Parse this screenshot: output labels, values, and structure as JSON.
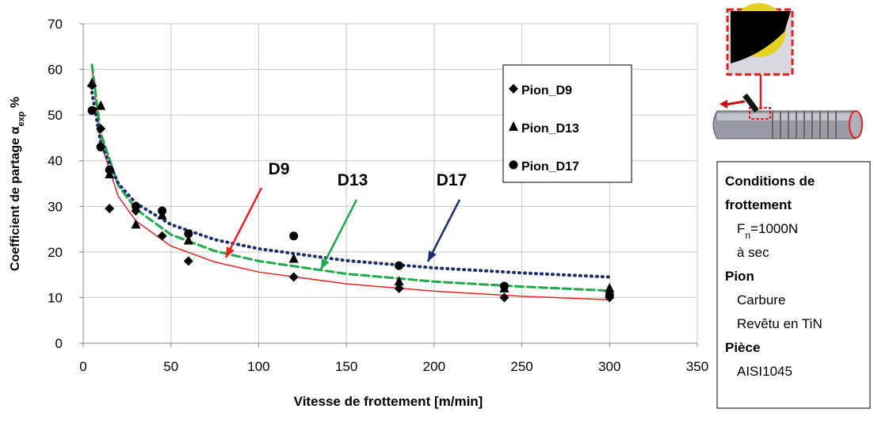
{
  "chart_data": {
    "type": "scatter",
    "xlabel": "Vitesse de frottement [m/min]",
    "ylabel": {
      "text": "Coefficient de partage α",
      "sub": "exp",
      "tail": " %"
    },
    "xlim": [
      0,
      350
    ],
    "xticks": [
      0,
      50,
      100,
      150,
      200,
      250,
      300,
      350
    ],
    "ylim": [
      0,
      70
    ],
    "yticks": [
      0,
      10,
      20,
      30,
      40,
      50,
      60,
      70
    ],
    "grid": true,
    "legend": "upper right",
    "series": [
      {
        "name": "Pion_D9",
        "marker": "diamond",
        "color": "#000000",
        "x": [
          5,
          10,
          15,
          30,
          45,
          60,
          120,
          180,
          240,
          300
        ],
        "values": [
          56.5,
          47,
          29.5,
          29,
          23.5,
          18,
          14.5,
          12,
          10,
          10
        ]
      },
      {
        "name": "Pion_D13",
        "marker": "triangle",
        "color": "#000000",
        "x": [
          5,
          10,
          15,
          30,
          45,
          60,
          120,
          180,
          240,
          300
        ],
        "values": [
          57,
          52,
          37,
          26,
          28,
          22.5,
          18.5,
          13.5,
          12,
          12
        ]
      },
      {
        "name": "Pion_D17",
        "marker": "circle",
        "color": "#000000",
        "x": [
          5,
          10,
          15,
          30,
          45,
          60,
          120,
          180,
          240,
          300
        ],
        "values": [
          51,
          43,
          38,
          30,
          29,
          24,
          23.5,
          17,
          12.5,
          10.5
        ]
      }
    ],
    "curves": [
      {
        "label": "D9",
        "color": "#e8231f",
        "style": "solid",
        "x": [
          5,
          10,
          20,
          30,
          50,
          75,
          100,
          150,
          200,
          250,
          300
        ],
        "values": [
          60.1,
          44.0,
          32.2,
          26.8,
          21.3,
          17.8,
          15.6,
          13.0,
          11.4,
          10.3,
          9.5
        ]
      },
      {
        "label": "D13",
        "color": "#1eaa4b",
        "style": "dashed",
        "x": [
          5,
          10,
          20,
          30,
          50,
          75,
          100,
          150,
          200,
          250,
          300
        ],
        "values": [
          61,
          46.0,
          34.6,
          29.4,
          23.8,
          20.2,
          18.0,
          15.2,
          13.5,
          12.4,
          11.5
        ]
      },
      {
        "label": "D17",
        "color": "#1b2d6e",
        "style": "dotted",
        "x": [
          5,
          10,
          20,
          30,
          50,
          75,
          100,
          150,
          200,
          250,
          300
        ],
        "values": [
          55,
          43.9,
          35.0,
          30.7,
          26.0,
          22.7,
          20.7,
          18.1,
          16.5,
          15.4,
          14.5
        ]
      }
    ]
  },
  "conditions": [
    {
      "text": "Conditions de",
      "bold": true
    },
    {
      "text": "frottement",
      "bold": true
    },
    {
      "text": "F",
      "sub": "n",
      "tail": "=1000N",
      "bold": false
    },
    {
      "text": "à sec",
      "bold": false
    },
    {
      "text": "Pion",
      "bold": true
    },
    {
      "text": "Carbure",
      "bold": false
    },
    {
      "text": "Revêtu en TiN",
      "bold": false
    },
    {
      "text": "Pièce",
      "bold": true
    },
    {
      "text": "AISI1045",
      "bold": false
    }
  ]
}
